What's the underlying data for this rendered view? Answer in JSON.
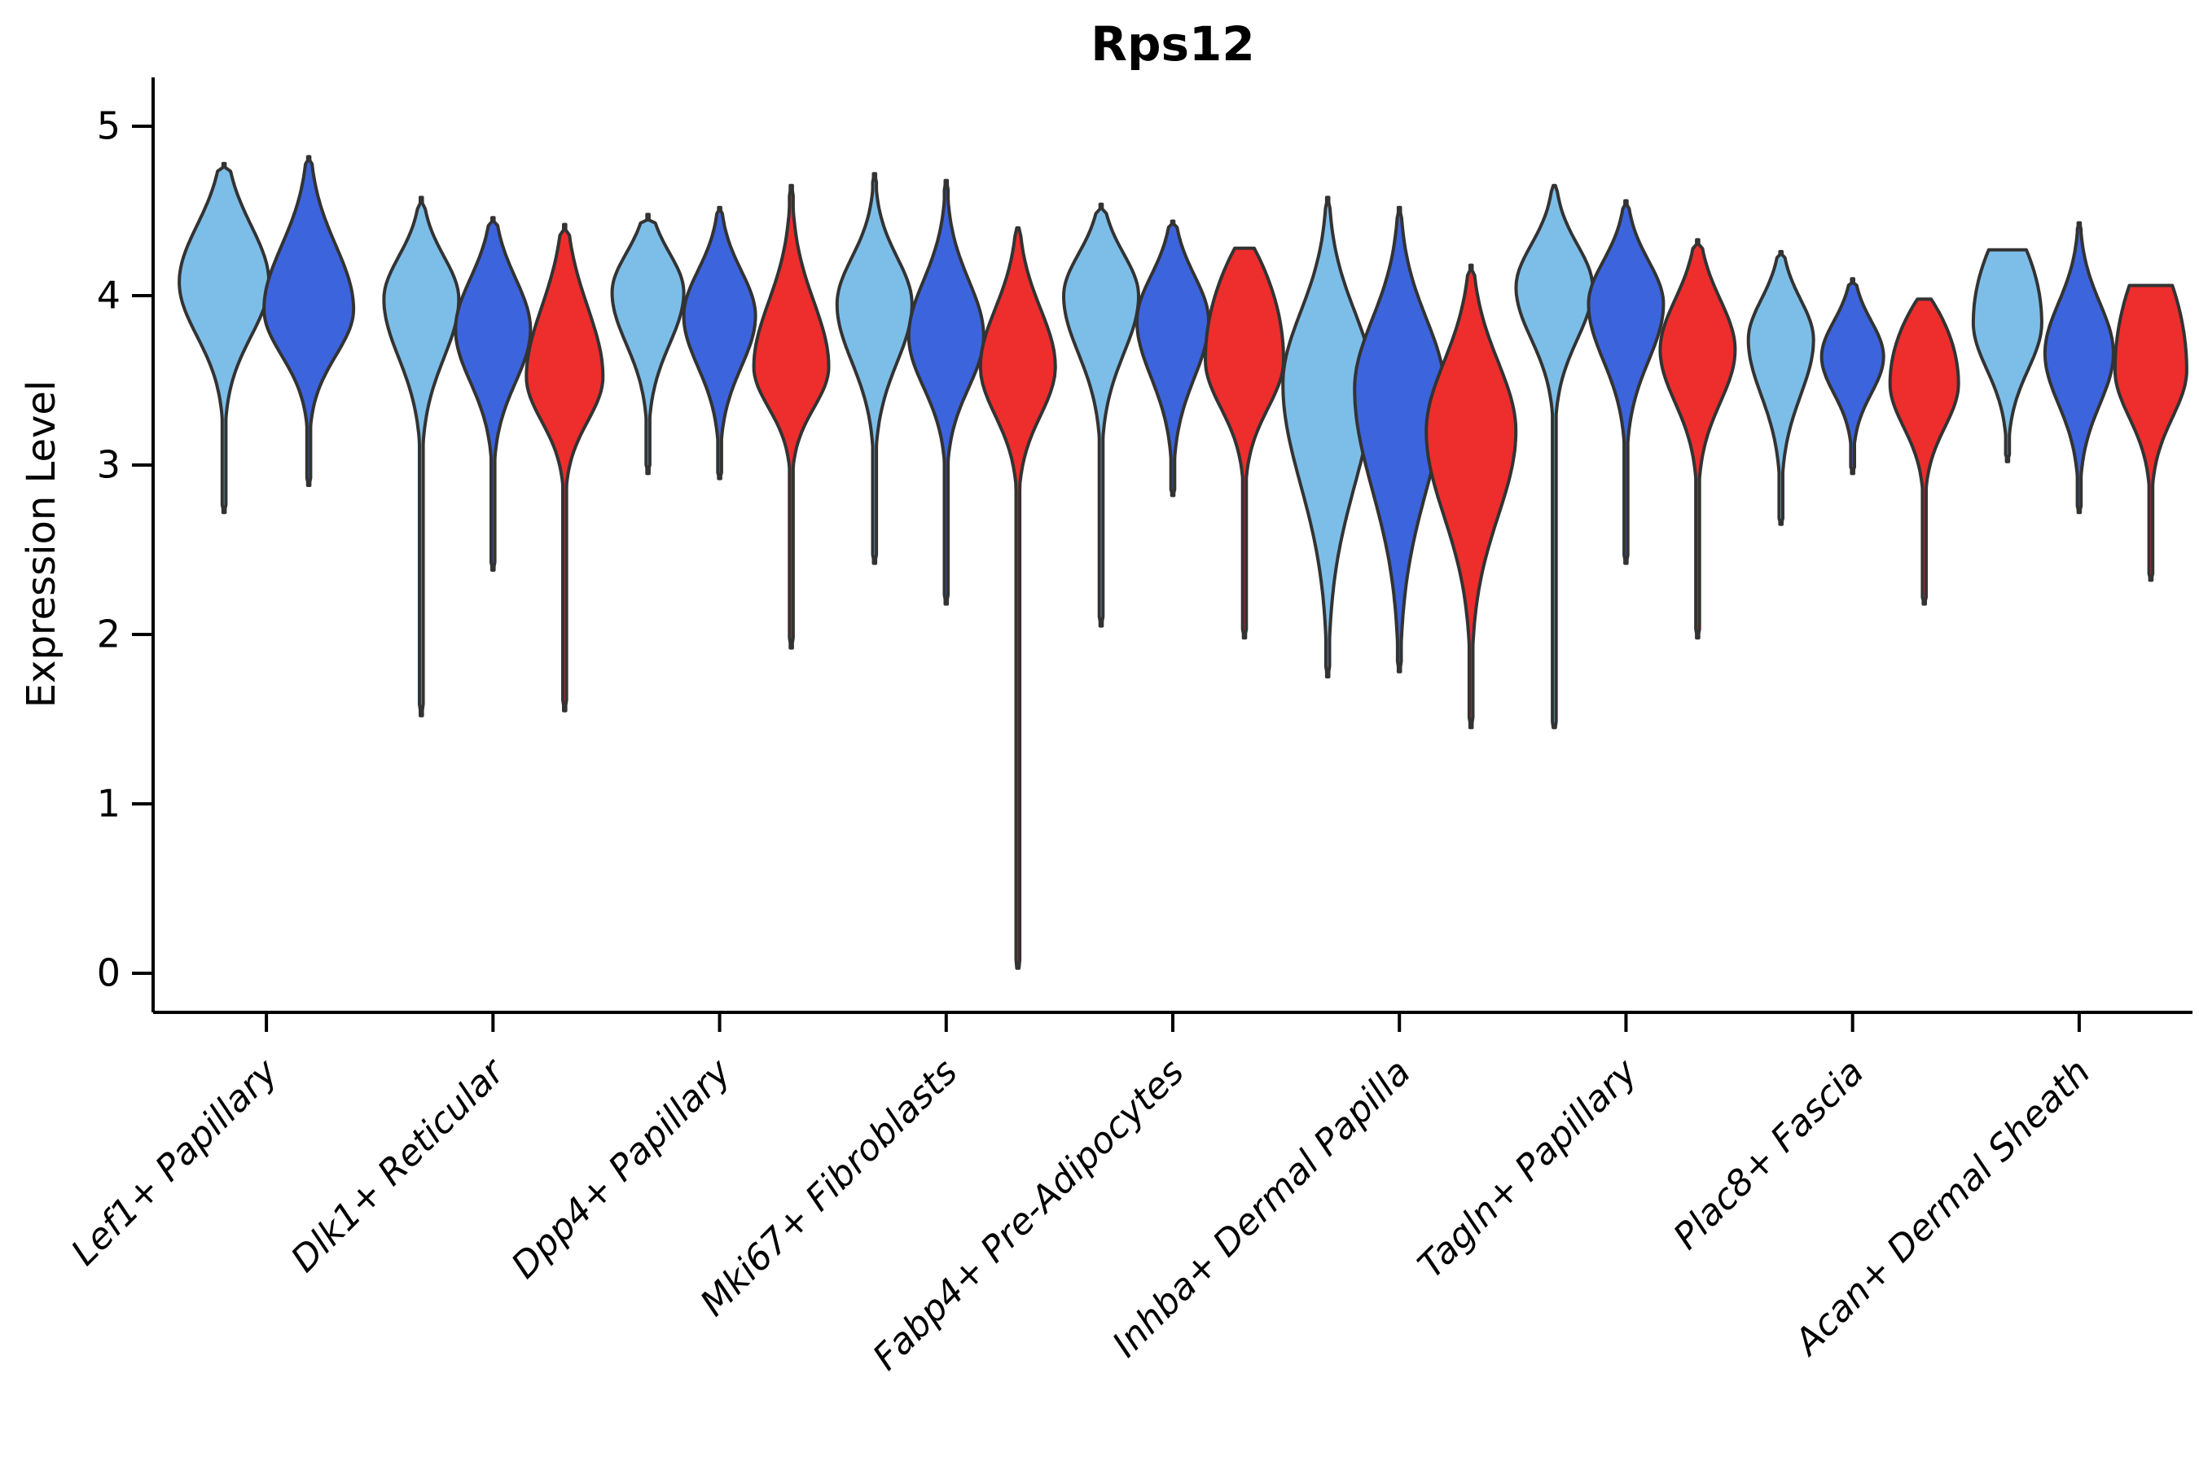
{
  "chart_data": {
    "type": "violin",
    "title": "Rps12",
    "ylabel": "Expression Level",
    "xlabel": "",
    "ylim": [
      0,
      5
    ],
    "yticks": [
      0,
      1,
      2,
      3,
      4,
      5
    ],
    "grid": false,
    "legend": "none",
    "background_color": "#ffffff",
    "outline_color": "#333333",
    "axis_color": "#000000",
    "palette": {
      "light_blue": "#7DBEE9",
      "royal_blue": "#3C64DC",
      "red": "#EE2D2D"
    },
    "categories": [
      {
        "label": "Lef1+ Papillary",
        "violins": [
          {
            "color": "#7DBEE9",
            "top": 4.78,
            "mode": 4.08,
            "pinch": 3.38,
            "bottom": 2.72,
            "halfwidth": 55,
            "nt": 2.1,
            "nb": 2.2
          },
          {
            "color": "#3C64DC",
            "top": 4.82,
            "mode": 3.92,
            "pinch": 3.32,
            "bottom": 2.88,
            "halfwidth": 55,
            "nt": 2.4,
            "nb": 2.2
          }
        ]
      },
      {
        "label": "Dlk1+ Reticular",
        "violins": [
          {
            "color": "#7DBEE9",
            "top": 4.58,
            "mode": 3.98,
            "pinch": 3.22,
            "bottom": 1.52,
            "halfwidth": 46,
            "nt": 2.4,
            "nb": 2.2
          },
          {
            "color": "#3C64DC",
            "top": 4.46,
            "mode": 3.8,
            "pinch": 3.12,
            "bottom": 2.38,
            "halfwidth": 46,
            "nt": 2.2,
            "nb": 2.2
          },
          {
            "color": "#EE2D2D",
            "top": 4.42,
            "mode": 3.52,
            "pinch": 2.95,
            "bottom": 1.55,
            "halfwidth": 47,
            "nt": 2.2,
            "nb": 2.2
          }
        ]
      },
      {
        "label": "Dpp4+ Papillary",
        "violins": [
          {
            "color": "#7DBEE9",
            "top": 4.48,
            "mode": 4.02,
            "pinch": 3.35,
            "bottom": 2.95,
            "halfwidth": 44,
            "nt": 2.0,
            "nb": 2.2
          },
          {
            "color": "#3C64DC",
            "top": 4.52,
            "mode": 3.88,
            "pinch": 3.22,
            "bottom": 2.92,
            "halfwidth": 44,
            "nt": 2.4,
            "nb": 2.2
          },
          {
            "color": "#EE2D2D",
            "top": 4.65,
            "mode": 3.58,
            "pinch": 3.05,
            "bottom": 1.92,
            "halfwidth": 46,
            "nt": 2.8,
            "nb": 2.2
          }
        ]
      },
      {
        "label": "Mki67+ Fibroblasts",
        "violins": [
          {
            "color": "#7DBEE9",
            "top": 4.72,
            "mode": 3.95,
            "pinch": 3.2,
            "bottom": 2.42,
            "halfwidth": 46,
            "nt": 2.8,
            "nb": 2.2
          },
          {
            "color": "#3C64DC",
            "top": 4.68,
            "mode": 3.76,
            "pinch": 3.1,
            "bottom": 2.18,
            "halfwidth": 46,
            "nt": 2.8,
            "nb": 2.2
          },
          {
            "color": "#EE2D2D",
            "top": 4.4,
            "mode": 3.58,
            "pinch": 2.95,
            "bottom": 0.03,
            "halfwidth": 46,
            "nt": 2.4,
            "nb": 2.2
          }
        ]
      },
      {
        "label": "Fabp4+ Pre-Adipocytes",
        "violins": [
          {
            "color": "#7DBEE9",
            "top": 4.54,
            "mode": 4.0,
            "pinch": 3.25,
            "bottom": 2.05,
            "halfwidth": 46,
            "nt": 2.2,
            "nb": 2.2
          },
          {
            "color": "#3C64DC",
            "top": 4.44,
            "mode": 3.85,
            "pinch": 3.12,
            "bottom": 2.82,
            "halfwidth": 44,
            "nt": 2.2,
            "nb": 2.2
          },
          {
            "color": "#EE2D2D",
            "top": 4.28,
            "mode": 3.62,
            "pinch": 3.0,
            "bottom": 1.98,
            "halfwidth": 48,
            "tipw": 0.25,
            "nb": 2.2
          }
        ]
      },
      {
        "label": "Inhba+ Dermal Papilla",
        "violins": [
          {
            "color": "#7DBEE9",
            "top": 4.58,
            "mode": 3.48,
            "pinch": 2.35,
            "bottom": 1.75,
            "halfwidth": 55,
            "nt": 2.6,
            "nb": 1.9
          },
          {
            "color": "#3C64DC",
            "top": 4.52,
            "mode": 3.45,
            "pinch": 2.32,
            "bottom": 1.78,
            "halfwidth": 55,
            "nt": 2.6,
            "nb": 1.9
          },
          {
            "color": "#EE2D2D",
            "top": 4.18,
            "mode": 3.2,
            "pinch": 2.25,
            "bottom": 1.45,
            "halfwidth": 55,
            "nt": 2.4,
            "nb": 1.9
          }
        ]
      },
      {
        "label": "Tagln+ Papillary",
        "violins": [
          {
            "color": "#7DBEE9",
            "top": 4.65,
            "mode": 4.05,
            "pinch": 3.38,
            "bottom": 1.45,
            "halfwidth": 47,
            "nt": 2.4,
            "nb": 2.2
          },
          {
            "color": "#3C64DC",
            "top": 4.56,
            "mode": 3.95,
            "pinch": 3.22,
            "bottom": 2.42,
            "halfwidth": 46,
            "nt": 2.4,
            "nb": 2.2
          },
          {
            "color": "#EE2D2D",
            "top": 4.33,
            "mode": 3.68,
            "pinch": 3.0,
            "bottom": 1.98,
            "halfwidth": 46,
            "nt": 2.2,
            "nb": 2.2
          }
        ]
      },
      {
        "label": "Plac8+ Fascia",
        "violins": [
          {
            "color": "#7DBEE9",
            "top": 4.26,
            "mode": 3.74,
            "pinch": 3.02,
            "bottom": 2.65,
            "halfwidth": 40,
            "nt": 2.2,
            "nb": 2.2
          },
          {
            "color": "#3C64DC",
            "top": 4.1,
            "mode": 3.64,
            "pinch": 3.12,
            "bottom": 2.95,
            "halfwidth": 38,
            "nt": 2.2,
            "nb": 2.4
          },
          {
            "color": "#EE2D2D",
            "top": 3.98,
            "mode": 3.48,
            "pinch": 2.92,
            "bottom": 2.18,
            "halfwidth": 42,
            "tipw": 0.2,
            "nb": 2.2
          }
        ]
      },
      {
        "label": "Acan+ Dermal Sheath",
        "violins": [
          {
            "color": "#7DBEE9",
            "top": 4.27,
            "mode": 3.84,
            "pinch": 3.18,
            "bottom": 3.02,
            "halfwidth": 42,
            "tipw": 0.55,
            "nb": 2.4
          },
          {
            "color": "#3C64DC",
            "top": 4.43,
            "mode": 3.66,
            "pinch": 3.0,
            "bottom": 2.72,
            "halfwidth": 42,
            "nt": 2.6,
            "nb": 2.2
          },
          {
            "color": "#EE2D2D",
            "top": 4.06,
            "mode": 3.56,
            "pinch": 2.95,
            "bottom": 2.32,
            "halfwidth": 44,
            "tipw": 0.6,
            "nb": 2.2
          }
        ]
      }
    ]
  }
}
